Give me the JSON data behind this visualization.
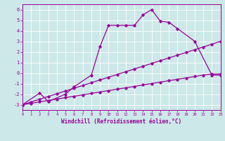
{
  "xlabel": "Windchill (Refroidissement éolien,°C)",
  "xlim": [
    0,
    23
  ],
  "ylim": [
    -3.5,
    6.5
  ],
  "xticks": [
    0,
    1,
    2,
    3,
    4,
    5,
    6,
    7,
    8,
    9,
    10,
    11,
    12,
    13,
    14,
    15,
    16,
    17,
    18,
    19,
    20,
    21,
    22,
    23
  ],
  "yticks": [
    -3,
    -2,
    -1,
    0,
    1,
    2,
    3,
    4,
    5,
    6
  ],
  "bg_color": "#cce8e8",
  "line_color": "#990099",
  "grid_color": "#aad4d4",
  "series1_x": [
    0,
    1,
    2,
    3,
    4,
    5,
    6,
    7,
    8,
    9,
    10,
    11,
    12,
    13,
    14,
    15,
    16,
    17,
    18,
    19,
    20,
    21,
    22,
    23
  ],
  "series1_y": [
    -3.0,
    -2.87,
    -2.73,
    -2.6,
    -2.47,
    -2.33,
    -2.2,
    -2.07,
    -1.93,
    -1.8,
    -1.67,
    -1.53,
    -1.4,
    -1.27,
    -1.13,
    -1.0,
    -0.87,
    -0.73,
    -0.6,
    -0.47,
    -0.33,
    -0.2,
    -0.1,
    -0.1
  ],
  "series2_x": [
    0,
    1,
    2,
    3,
    4,
    5,
    6,
    7,
    8,
    9,
    10,
    11,
    12,
    13,
    14,
    15,
    16,
    17,
    18,
    19,
    20,
    21,
    22,
    23
  ],
  "series2_y": [
    -3.0,
    -2.74,
    -2.48,
    -2.22,
    -1.96,
    -1.7,
    -1.44,
    -1.18,
    -0.92,
    -0.66,
    -0.4,
    -0.14,
    0.12,
    0.38,
    0.64,
    0.9,
    1.16,
    1.42,
    1.68,
    1.94,
    2.2,
    2.46,
    2.72,
    3.0
  ],
  "series3_x": [
    0,
    2,
    3,
    5,
    6,
    8,
    9,
    10,
    11,
    12,
    13,
    14,
    15,
    16,
    17,
    18,
    20,
    22,
    23
  ],
  "series3_y": [
    -3.0,
    -1.9,
    -2.7,
    -2.0,
    -1.3,
    -0.2,
    2.5,
    4.5,
    4.5,
    4.5,
    4.5,
    5.5,
    6.0,
    4.9,
    4.8,
    4.2,
    3.0,
    -0.2,
    -0.2
  ]
}
